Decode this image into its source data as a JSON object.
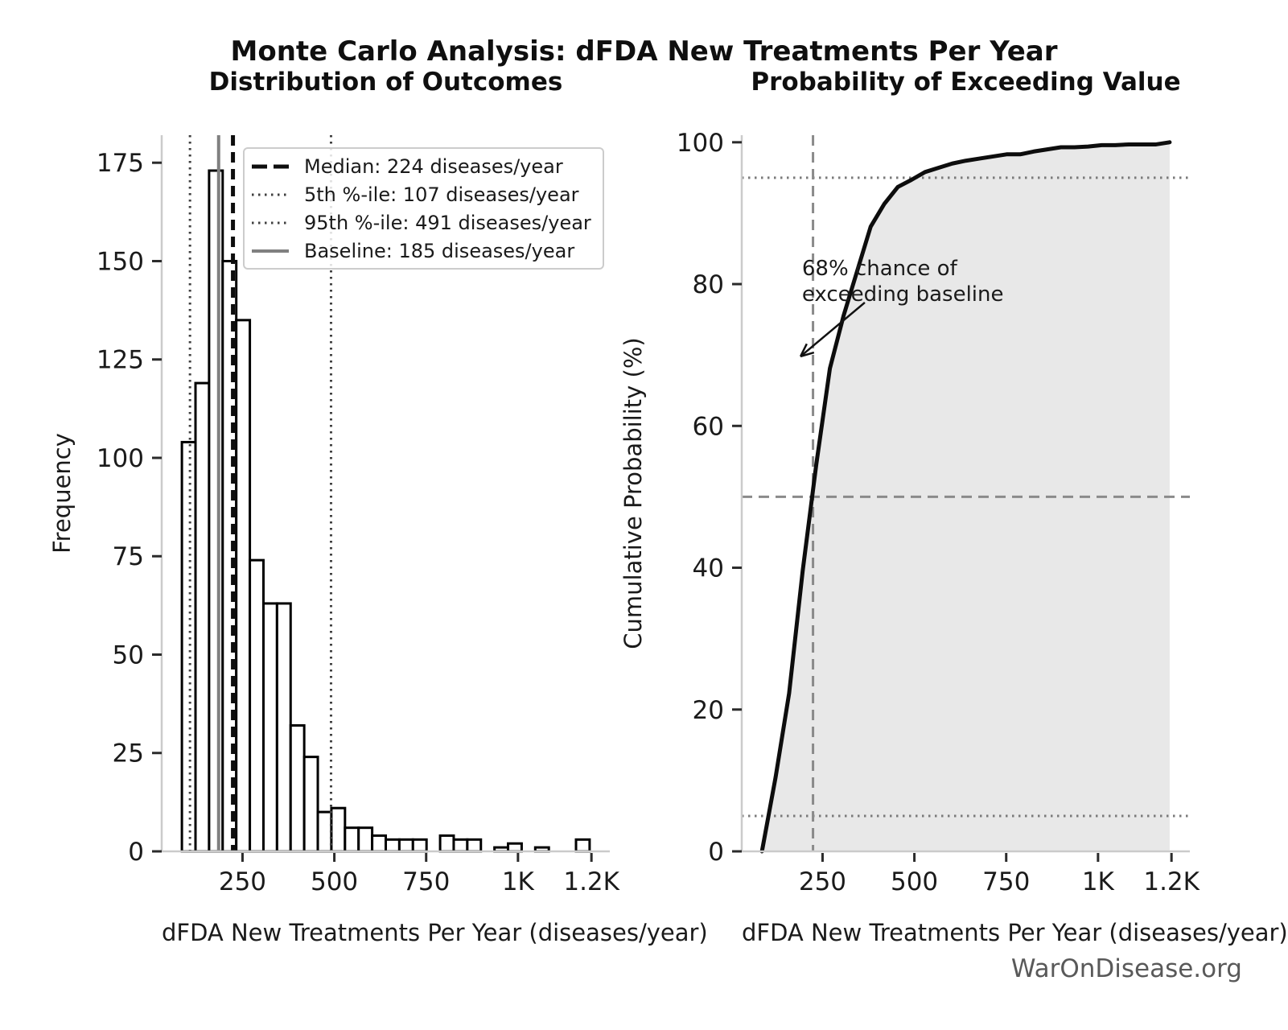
{
  "title": "Monte Carlo Analysis: dFDA New Treatments Per Year",
  "watermark": "WarOnDisease.org",
  "chart_data": [
    {
      "type": "bar",
      "title": "Distribution of Outcomes",
      "xlabel": "dFDA New Treatments Per Year (diseases/year)",
      "ylabel": "Frequency",
      "xlim": [
        30,
        1250
      ],
      "ylim": [
        0,
        182
      ],
      "bin_start": 85,
      "bin_width": 37,
      "bin_counts": [
        104,
        119,
        173,
        150,
        135,
        74,
        63,
        63,
        32,
        24,
        10,
        11,
        6,
        6,
        4,
        3,
        3,
        3,
        0,
        4,
        3,
        3,
        0,
        1,
        2,
        0,
        1,
        0,
        0,
        3
      ],
      "bar_fill": "#ffffff",
      "bar_edge": "#000000",
      "x_ticks": [
        {
          "v": 250,
          "label": "250"
        },
        {
          "v": 500,
          "label": "500"
        },
        {
          "v": 750,
          "label": "750"
        },
        {
          "v": 1000,
          "label": "1K"
        },
        {
          "v": 1200,
          "label": "1.2K"
        }
      ],
      "y_ticks": [
        {
          "v": 0,
          "label": "0"
        },
        {
          "v": 25,
          "label": "25"
        },
        {
          "v": 50,
          "label": "50"
        },
        {
          "v": 75,
          "label": "75"
        },
        {
          "v": 100,
          "label": "100"
        },
        {
          "v": 125,
          "label": "125"
        },
        {
          "v": 150,
          "label": "150"
        },
        {
          "v": 175,
          "label": "175"
        }
      ],
      "ref_lines": [
        {
          "name": "p5-line",
          "v": 107,
          "style": "dotted",
          "color": "#3f3f3f",
          "width": 3
        },
        {
          "name": "p95-line",
          "v": 491,
          "style": "dotted",
          "color": "#3f3f3f",
          "width": 3
        },
        {
          "name": "baseline-line",
          "v": 185,
          "style": "solid",
          "color": "#808080",
          "width": 4
        },
        {
          "name": "median-line",
          "v": 224,
          "style": "dashed",
          "color": "#0d0d0d",
          "width": 5
        }
      ],
      "legend": [
        {
          "label": "Median: 224 diseases/year",
          "style": "dashed",
          "color": "#0d0d0d",
          "width": 5
        },
        {
          "label": "5th %-ile: 107 diseases/year",
          "style": "dotted",
          "color": "#3f3f3f",
          "width": 3
        },
        {
          "label": "95th %-ile: 491 diseases/year",
          "style": "dotted",
          "color": "#3f3f3f",
          "width": 3
        },
        {
          "label": "Baseline: 185 diseases/year",
          "style": "solid",
          "color": "#808080",
          "width": 4
        }
      ]
    },
    {
      "type": "line",
      "title": "Probability of Exceeding Value",
      "xlabel": "dFDA New Treatments Per Year (diseases/year)",
      "ylabel": "Cumulative Probability (%)",
      "xlim": [
        30,
        1250
      ],
      "ylim": [
        0,
        101
      ],
      "line_color": "#0d0d0d",
      "line_width": 5,
      "fill_color": "#e8e8e8",
      "points": [
        [
          85,
          0
        ],
        [
          122,
          10.4
        ],
        [
          159,
          22.3
        ],
        [
          196,
          39.6
        ],
        [
          233,
          54.6
        ],
        [
          270,
          68.1
        ],
        [
          307,
          75.5
        ],
        [
          344,
          81.8
        ],
        [
          381,
          88.1
        ],
        [
          418,
          91.3
        ],
        [
          455,
          93.7
        ],
        [
          492,
          94.7
        ],
        [
          529,
          95.8
        ],
        [
          566,
          96.4
        ],
        [
          603,
          97.0
        ],
        [
          640,
          97.4
        ],
        [
          677,
          97.7
        ],
        [
          714,
          98.0
        ],
        [
          751,
          98.3
        ],
        [
          788,
          98.3
        ],
        [
          825,
          98.7
        ],
        [
          862,
          99.0
        ],
        [
          899,
          99.3
        ],
        [
          936,
          99.3
        ],
        [
          973,
          99.4
        ],
        [
          1010,
          99.6
        ],
        [
          1047,
          99.6
        ],
        [
          1084,
          99.7
        ],
        [
          1121,
          99.7
        ],
        [
          1158,
          99.7
        ],
        [
          1195,
          100
        ]
      ],
      "x_ticks": [
        {
          "v": 250,
          "label": "250"
        },
        {
          "v": 500,
          "label": "500"
        },
        {
          "v": 750,
          "label": "750"
        },
        {
          "v": 1000,
          "label": "1K"
        },
        {
          "v": 1200,
          "label": "1.2K"
        }
      ],
      "y_ticks": [
        {
          "v": 0,
          "label": "0"
        },
        {
          "v": 20,
          "label": "20"
        },
        {
          "v": 40,
          "label": "40"
        },
        {
          "v": 60,
          "label": "60"
        },
        {
          "v": 80,
          "label": "80"
        },
        {
          "v": 100,
          "label": "100"
        }
      ],
      "h_lines": [
        {
          "name": "p95-hline",
          "v": 95,
          "style": "dotted",
          "color": "#7a7a7a",
          "width": 3
        },
        {
          "name": "p50-hline",
          "v": 50,
          "style": "dashed",
          "color": "#8a8a8a",
          "width": 3
        },
        {
          "name": "p5-hline",
          "v": 5,
          "style": "dotted",
          "color": "#7a7a7a",
          "width": 3
        }
      ],
      "v_lines": [
        {
          "name": "median-vline",
          "v": 224,
          "style": "dashed",
          "color": "#8a8a8a",
          "width": 3
        }
      ],
      "annotation": {
        "line1": "68% chance of",
        "line2": "exceeding baseline",
        "text_x": 194,
        "text_y": 84,
        "arrow_from": [
          365,
          77.4
        ],
        "arrow_to": [
          190,
          69.8
        ]
      }
    }
  ]
}
